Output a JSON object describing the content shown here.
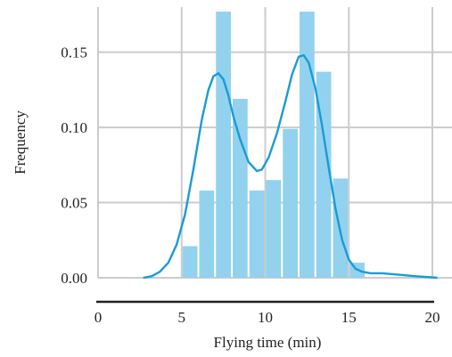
{
  "chart_data": {
    "type": "bar",
    "xlabel": "Flying time (min)",
    "ylabel": "Frequency",
    "xlim": [
      0,
      20
    ],
    "ylim": [
      0,
      0.18
    ],
    "x_ticks": [
      0,
      5,
      10,
      15,
      20
    ],
    "y_ticks": [
      0.0,
      0.05,
      0.1,
      0.15
    ],
    "y_tick_labels": [
      "0.00",
      "0.05",
      "0.10",
      "0.15"
    ],
    "grid": true,
    "bin_width": 1.0,
    "bins": [
      {
        "x0": 5,
        "x1": 6,
        "value": 0.021
      },
      {
        "x0": 6,
        "x1": 7,
        "value": 0.058
      },
      {
        "x0": 7,
        "x1": 8,
        "value": 0.177
      },
      {
        "x0": 8,
        "x1": 9,
        "value": 0.119
      },
      {
        "x0": 9,
        "x1": 10,
        "value": 0.058
      },
      {
        "x0": 10,
        "x1": 11,
        "value": 0.065
      },
      {
        "x0": 11,
        "x1": 12,
        "value": 0.099
      },
      {
        "x0": 12,
        "x1": 13,
        "value": 0.177
      },
      {
        "x0": 13,
        "x1": 14,
        "value": 0.137
      },
      {
        "x0": 14,
        "x1": 15,
        "value": 0.066
      },
      {
        "x0": 15,
        "x1": 16,
        "value": 0.01
      }
    ],
    "density_curve": {
      "x": [
        2.7,
        3.2,
        3.7,
        4.2,
        4.7,
        5.2,
        5.7,
        6.2,
        6.6,
        6.9,
        7.2,
        7.5,
        7.8,
        8.1,
        8.5,
        9.0,
        9.5,
        9.8,
        10.2,
        10.7,
        11.2,
        11.6,
        12.0,
        12.3,
        12.6,
        13.0,
        13.4,
        13.8,
        14.2,
        14.6,
        15.0,
        15.4,
        15.8,
        16.3,
        17.0,
        18.0,
        19.0,
        20.3
      ],
      "y": [
        0.0,
        0.001,
        0.004,
        0.01,
        0.022,
        0.042,
        0.072,
        0.105,
        0.125,
        0.134,
        0.136,
        0.132,
        0.121,
        0.107,
        0.092,
        0.077,
        0.071,
        0.072,
        0.08,
        0.096,
        0.117,
        0.135,
        0.147,
        0.148,
        0.143,
        0.126,
        0.101,
        0.073,
        0.046,
        0.025,
        0.012,
        0.006,
        0.004,
        0.003,
        0.003,
        0.002,
        0.001,
        0.0
      ]
    },
    "colors": {
      "bar": "#93d2ee",
      "curve": "#1a9bd7",
      "grid": "#cccccc",
      "axis": "#222222"
    }
  }
}
